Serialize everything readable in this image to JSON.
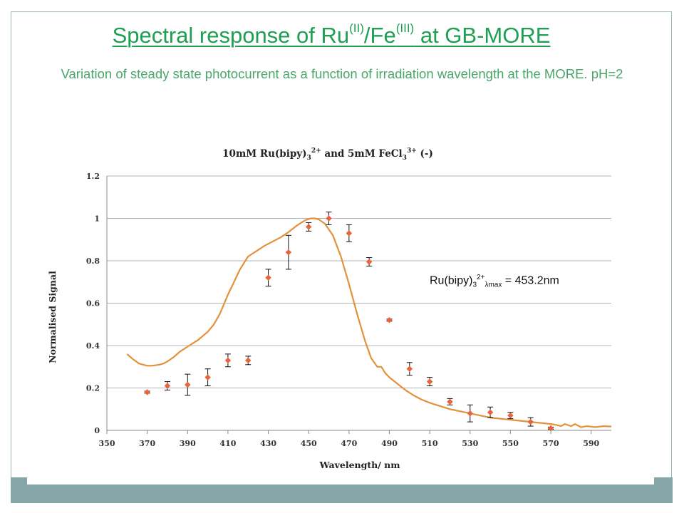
{
  "slide": {
    "title_main": "Spectral response of Ru",
    "title_sup1": "(II)",
    "title_mid": "/Fe",
    "title_sup2": "(III)",
    "title_end": " at GB-MORE",
    "subtitle": "Variation of steady state photocurrent as a function of irradiation wavelength at the MORE. pH=2",
    "colors": {
      "title": "#1e9f52",
      "subtitle": "#4aa66a",
      "frame": "#86a5a6"
    }
  },
  "annotation": {
    "base": "Ru(bipy)",
    "sub": "3",
    "sup": "2+",
    "sub2": "λmax",
    "value": " = 453.2nm"
  },
  "chart_data": {
    "type": "scatter",
    "title_parts": {
      "a": "10mM Ru(bipy)",
      "sub": "3",
      "sup": "2+",
      "b": " and 5mM FeCl",
      "sub2": "3",
      "sup2": "3+",
      "c": " (-)"
    },
    "xlabel": "Wavelength/ nm",
    "ylabel": "Normalised Signal",
    "xlim": [
      350,
      600
    ],
    "ylim": [
      0,
      1.2
    ],
    "x_ticks": [
      "350",
      "370",
      "390",
      "410",
      "430",
      "450",
      "470",
      "490",
      "510",
      "530",
      "550",
      "570",
      "590"
    ],
    "y_ticks": [
      "0",
      "0.2",
      "0.4",
      "0.6",
      "0.8",
      "1",
      "1.2"
    ],
    "grid": "horizontal",
    "series": [
      {
        "kind": "points_with_errorbars",
        "color": "#e8643c",
        "x": [
          370,
          380,
          390,
          400,
          410,
          420,
          430,
          440,
          450,
          460,
          470,
          480,
          490,
          500,
          510,
          520,
          530,
          540,
          550,
          560,
          570
        ],
        "y": [
          0.18,
          0.21,
          0.215,
          0.25,
          0.33,
          0.33,
          0.72,
          0.84,
          0.96,
          1.0,
          0.93,
          0.795,
          0.52,
          0.29,
          0.23,
          0.135,
          0.08,
          0.085,
          0.07,
          0.04,
          0.01
        ],
        "err": [
          0.005,
          0.02,
          0.05,
          0.04,
          0.03,
          0.02,
          0.04,
          0.08,
          0.02,
          0.03,
          0.04,
          0.02,
          0.005,
          0.03,
          0.02,
          0.015,
          0.04,
          0.025,
          0.015,
          0.02,
          0.005
        ]
      },
      {
        "kind": "line",
        "color": "#e3913a",
        "x": [
          360,
          363,
          366,
          368,
          370,
          372,
          374,
          376,
          378,
          380,
          383,
          386,
          390,
          395,
          400,
          403,
          406,
          410,
          413,
          416,
          420,
          424,
          428,
          432,
          436,
          440,
          444,
          448,
          451,
          453,
          455,
          458,
          462,
          466,
          470,
          474,
          478,
          481,
          484,
          486,
          488,
          490,
          494,
          498,
          502,
          506,
          510,
          515,
          520,
          525,
          530,
          535,
          540,
          545,
          550,
          555,
          560,
          565,
          570,
          573,
          575,
          577,
          580,
          582,
          585,
          588,
          592,
          596,
          600
        ],
        "y": [
          0.36,
          0.335,
          0.315,
          0.31,
          0.305,
          0.305,
          0.307,
          0.31,
          0.315,
          0.325,
          0.345,
          0.37,
          0.395,
          0.425,
          0.465,
          0.5,
          0.55,
          0.64,
          0.7,
          0.76,
          0.82,
          0.845,
          0.87,
          0.89,
          0.91,
          0.935,
          0.965,
          0.99,
          1.0,
          1.0,
          0.995,
          0.975,
          0.92,
          0.82,
          0.69,
          0.55,
          0.42,
          0.34,
          0.3,
          0.3,
          0.27,
          0.25,
          0.22,
          0.19,
          0.165,
          0.145,
          0.13,
          0.115,
          0.1,
          0.09,
          0.08,
          0.07,
          0.06,
          0.055,
          0.05,
          0.045,
          0.04,
          0.035,
          0.03,
          0.025,
          0.02,
          0.03,
          0.02,
          0.03,
          0.015,
          0.02,
          0.015,
          0.02,
          0.018
        ]
      }
    ]
  }
}
